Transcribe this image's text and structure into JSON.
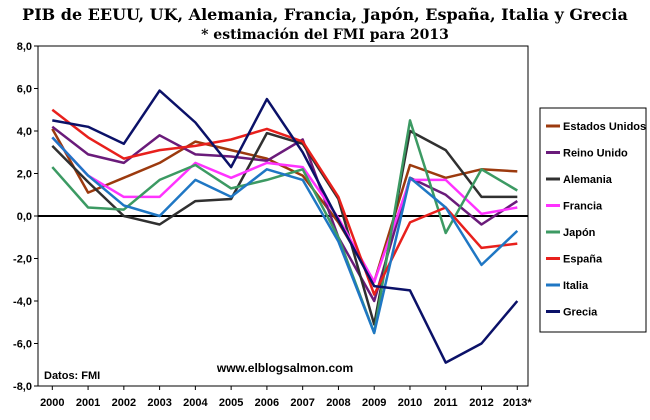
{
  "chart_data": {
    "type": "line",
    "title": "PIB de EEUU, UK, Alemania, Francia, Japón, España, Italia y Grecia",
    "subtitle": "* estimación del FMI para 2013",
    "xlabel": "",
    "ylabel": "",
    "categories": [
      "2000",
      "2001",
      "2002",
      "2003",
      "2004",
      "2005",
      "2006",
      "2007",
      "2008",
      "2009",
      "2010",
      "2011",
      "2012",
      "2013*"
    ],
    "ylim": [
      -8,
      8
    ],
    "yticks": [
      "8,0",
      "6,0",
      "4,0",
      "2,0",
      "0,0",
      "-2,0",
      "-4,0",
      "-6,0",
      "-8,0"
    ],
    "grid": false,
    "legend_position": "right",
    "source_note": "Datos: FMI",
    "watermark": "www.elblogsalmon.com",
    "series": [
      {
        "name": "Estados Unidos",
        "color": "#9c3a0e",
        "values": [
          4.1,
          1.1,
          1.8,
          2.5,
          3.5,
          3.1,
          2.7,
          1.9,
          -0.3,
          -3.1,
          2.4,
          1.8,
          2.2,
          2.1
        ]
      },
      {
        "name": "Reino Unido",
        "color": "#6a1b7a",
        "values": [
          4.2,
          2.9,
          2.5,
          3.8,
          2.9,
          2.8,
          2.6,
          3.6,
          -1.0,
          -4.0,
          1.8,
          1.0,
          -0.4,
          0.7
        ]
      },
      {
        "name": "Alemania",
        "color": "#303030",
        "values": [
          3.3,
          1.6,
          0.0,
          -0.4,
          0.7,
          0.8,
          3.9,
          3.4,
          0.8,
          -5.1,
          4.0,
          3.1,
          0.9,
          0.9
        ]
      },
      {
        "name": "Francia",
        "color": "#ff33ff",
        "values": [
          3.7,
          1.9,
          0.9,
          0.9,
          2.5,
          1.8,
          2.5,
          2.3,
          -0.1,
          -3.1,
          1.7,
          1.7,
          0.1,
          0.4
        ]
      },
      {
        "name": "Japón",
        "color": "#3c9a63",
        "values": [
          2.3,
          0.4,
          0.3,
          1.7,
          2.4,
          1.3,
          1.7,
          2.2,
          -1.0,
          -5.5,
          4.5,
          -0.8,
          2.2,
          1.2
        ]
      },
      {
        "name": "España",
        "color": "#e8201c",
        "values": [
          5.0,
          3.7,
          2.7,
          3.1,
          3.3,
          3.6,
          4.1,
          3.5,
          0.9,
          -3.7,
          -0.3,
          0.4,
          -1.5,
          -1.3
        ]
      },
      {
        "name": "Italia",
        "color": "#1f77c4",
        "values": [
          3.7,
          1.9,
          0.5,
          0.0,
          1.7,
          0.9,
          2.2,
          1.7,
          -1.2,
          -5.5,
          1.8,
          0.4,
          -2.3,
          -0.7
        ]
      },
      {
        "name": "Grecia",
        "color": "#0b1168",
        "values": [
          4.5,
          4.2,
          3.4,
          5.9,
          4.4,
          2.3,
          5.5,
          3.0,
          -0.2,
          -3.3,
          -3.5,
          -6.9,
          -6.0,
          -4.0
        ]
      }
    ]
  }
}
